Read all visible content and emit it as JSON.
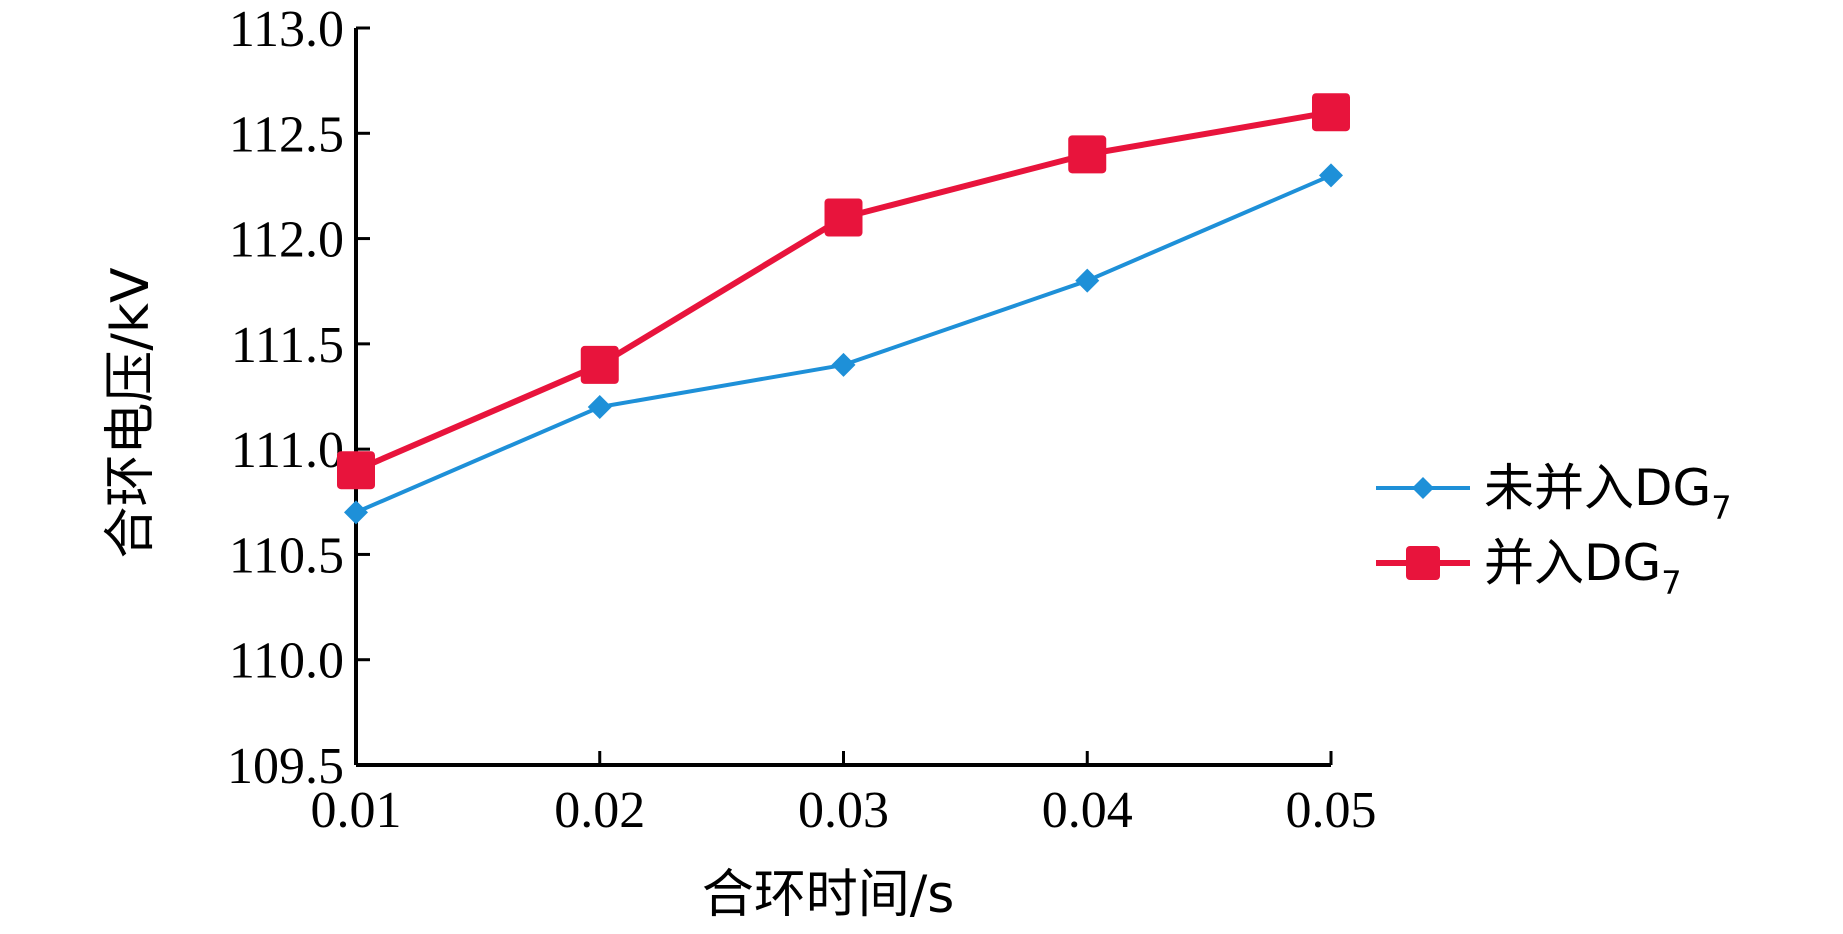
{
  "chart_data": {
    "type": "line",
    "xlabel": "合环时间/s",
    "ylabel": "合环电压/kV",
    "x": [
      0.01,
      0.02,
      0.03,
      0.04,
      0.05
    ],
    "x_tick_labels": [
      "0.01",
      "0.02",
      "0.03",
      "0.04",
      "0.05"
    ],
    "ylim": [
      109.5,
      113.0
    ],
    "y_ticks": [
      109.5,
      110.0,
      110.5,
      111.0,
      111.5,
      112.0,
      112.5,
      113.0
    ],
    "y_tick_labels": [
      "109.5",
      "110.0",
      "110.5",
      "111.0",
      "111.5",
      "112.0",
      "112.5",
      "113.0"
    ],
    "grid": false,
    "legend_position": "right",
    "series": [
      {
        "name_main": "未并入DG",
        "name_sub": "7",
        "values": [
          110.7,
          111.2,
          111.4,
          111.8,
          112.3
        ],
        "color": "#1e90d8",
        "marker": "diamond"
      },
      {
        "name_main": "并入DG",
        "name_sub": "7",
        "values": [
          110.9,
          111.4,
          112.1,
          112.4,
          112.6
        ],
        "color": "#e8143c",
        "marker": "square"
      }
    ]
  }
}
